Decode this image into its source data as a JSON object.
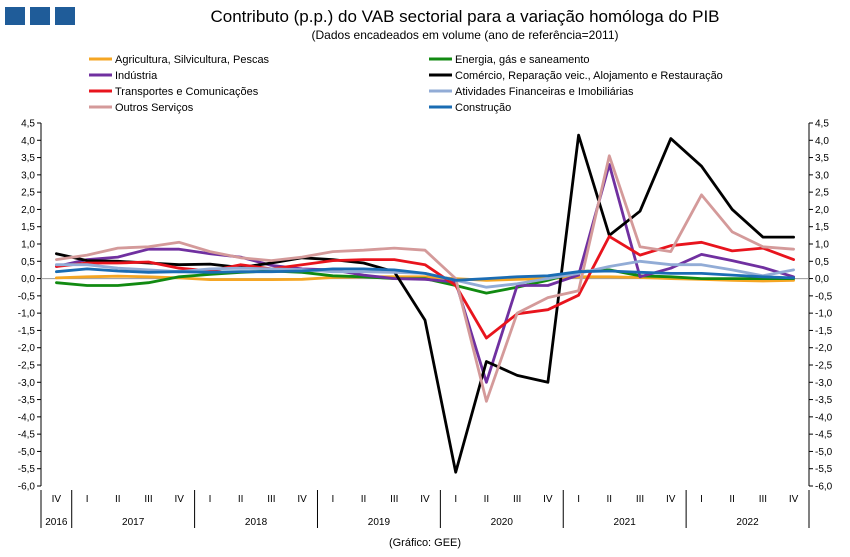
{
  "header": {
    "title": "Contributo (p.p.) do VAB sectorial para a variação homóloga do PIB",
    "subtitle": "(Dados encadeados em volume (ano de referência=2011)",
    "source": "(Gráfico: GEE)",
    "logo_color": "#1f5c99"
  },
  "chart_data": {
    "type": "line",
    "quarters": [
      "IV",
      "I",
      "II",
      "III",
      "IV",
      "I",
      "II",
      "III",
      "IV",
      "I",
      "II",
      "III",
      "IV",
      "I",
      "II",
      "III",
      "IV",
      "I",
      "II",
      "III",
      "IV",
      "I",
      "II",
      "III",
      "IV"
    ],
    "years": [
      {
        "label": "2016",
        "start": 0,
        "end": 0
      },
      {
        "label": "2017",
        "start": 1,
        "end": 4
      },
      {
        "label": "2018",
        "start": 5,
        "end": 8
      },
      {
        "label": "2019",
        "start": 9,
        "end": 12
      },
      {
        "label": "2020",
        "start": 13,
        "end": 16
      },
      {
        "label": "2021",
        "start": 17,
        "end": 20
      },
      {
        "label": "2022",
        "start": 21,
        "end": 24
      }
    ],
    "ylim": [
      -6.0,
      4.5
    ],
    "yticks": [
      "4,5",
      "4,0",
      "3,5",
      "3,0",
      "2,5",
      "2,0",
      "1,5",
      "1,0",
      "0,5",
      "0,0",
      "-0,5",
      "-1,0",
      "-1,5",
      "-2,0",
      "-2,5",
      "-3,0",
      "-3,5",
      "-4,0",
      "-4,5",
      "-5,0",
      "-5,5",
      "-6,0"
    ],
    "ytick_values": [
      4.5,
      4.0,
      3.5,
      3.0,
      2.5,
      2.0,
      1.5,
      1.0,
      0.5,
      0.0,
      -0.5,
      -1.0,
      -1.5,
      -2.0,
      -2.5,
      -3.0,
      -3.5,
      -4.0,
      -4.5,
      -5.0,
      -5.5,
      -6.0
    ],
    "legend_placement": "top, two columns",
    "series": [
      {
        "name": "Agricultura, Silvicultura, Pescas",
        "color": "#f5a623",
        "values": [
          0.02,
          0.05,
          0.07,
          0.05,
          0.02,
          -0.03,
          -0.03,
          -0.03,
          -0.02,
          0.03,
          0.05,
          0.05,
          0.05,
          0.0,
          -0.05,
          -0.02,
          0.0,
          0.05,
          0.05,
          0.03,
          0.0,
          -0.02,
          -0.05,
          -0.07,
          -0.05
        ]
      },
      {
        "name": "Energia, gás e saneamento",
        "color": "#118a11",
        "values": [
          -0.12,
          -0.2,
          -0.2,
          -0.12,
          0.05,
          0.12,
          0.18,
          0.22,
          0.18,
          0.08,
          0.05,
          0.0,
          0.0,
          -0.2,
          -0.42,
          -0.25,
          -0.05,
          0.2,
          0.25,
          0.08,
          0.05,
          0.0,
          0.0,
          0.0,
          0.0
        ]
      },
      {
        "name": "Indústria",
        "color": "#7030a0",
        "values": [
          0.35,
          0.55,
          0.62,
          0.85,
          0.85,
          0.72,
          0.62,
          0.38,
          0.28,
          0.25,
          0.1,
          0.0,
          -0.02,
          -0.1,
          -3.0,
          -0.2,
          -0.2,
          0.1,
          3.3,
          0.05,
          0.3,
          0.7,
          0.52,
          0.32,
          0.05
        ]
      },
      {
        "name": "Comércio, Reparação veic., Alojamento e Restauração",
        "color": "#000000",
        "values": [
          0.72,
          0.52,
          0.5,
          0.45,
          0.4,
          0.42,
          0.32,
          0.45,
          0.6,
          0.55,
          0.45,
          0.2,
          -1.2,
          -5.6,
          -2.4,
          -2.8,
          -3.0,
          4.15,
          1.25,
          1.95,
          4.05,
          3.25,
          2.0,
          1.2,
          1.2
        ]
      },
      {
        "name": "Transportes e Comunicações",
        "color": "#e8141d",
        "values": [
          0.35,
          0.45,
          0.45,
          0.48,
          0.3,
          0.22,
          0.4,
          0.28,
          0.4,
          0.52,
          0.55,
          0.55,
          0.4,
          -0.2,
          -1.72,
          -1.02,
          -0.9,
          -0.48,
          1.22,
          0.68,
          0.95,
          1.05,
          0.8,
          0.88,
          0.55
        ]
      },
      {
        "name": "Atividades Financeiras e Imobiliárias",
        "color": "#92acd6",
        "values": [
          0.4,
          0.4,
          0.3,
          0.25,
          0.2,
          0.28,
          0.3,
          0.28,
          0.26,
          0.2,
          0.2,
          0.18,
          0.15,
          -0.05,
          -0.25,
          -0.15,
          0.0,
          0.15,
          0.35,
          0.5,
          0.4,
          0.4,
          0.25,
          0.08,
          0.25
        ]
      },
      {
        "name": "Outros Serviços",
        "color": "#d49a9a",
        "values": [
          0.55,
          0.68,
          0.88,
          0.92,
          1.05,
          0.78,
          0.6,
          0.52,
          0.62,
          0.78,
          0.82,
          0.88,
          0.82,
          0.0,
          -3.55,
          -1.0,
          -0.55,
          -0.35,
          3.55,
          0.92,
          0.78,
          2.42,
          1.35,
          0.92,
          0.85
        ]
      },
      {
        "name": "Construção",
        "color": "#1a6cb3",
        "values": [
          0.2,
          0.28,
          0.22,
          0.18,
          0.2,
          0.18,
          0.2,
          0.2,
          0.22,
          0.28,
          0.28,
          0.25,
          0.15,
          -0.05,
          0.0,
          0.05,
          0.08,
          0.2,
          0.22,
          0.18,
          0.15,
          0.15,
          0.1,
          0.05,
          0.02
        ]
      }
    ],
    "legend_columns": [
      [
        0,
        2,
        4,
        6
      ],
      [
        1,
        3,
        5,
        7
      ]
    ]
  }
}
